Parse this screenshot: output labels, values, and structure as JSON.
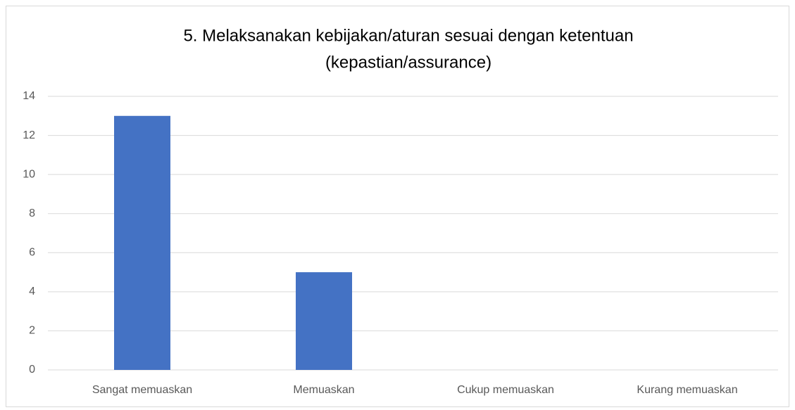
{
  "chart_data": {
    "type": "bar",
    "title": [
      "5. Melaksanakan kebijakan/aturan sesuai dengan ketentuan",
      "(kepastian/assurance)"
    ],
    "categories": [
      "Sangat memuaskan",
      "Memuaskan",
      "Cukup memuaskan",
      "Kurang memuaskan"
    ],
    "values": [
      13,
      5,
      0,
      0
    ],
    "color": "#4472c4",
    "ylim": [
      0,
      14
    ],
    "yticks": [
      0,
      2,
      4,
      6,
      8,
      10,
      12,
      14
    ],
    "grid": true
  }
}
